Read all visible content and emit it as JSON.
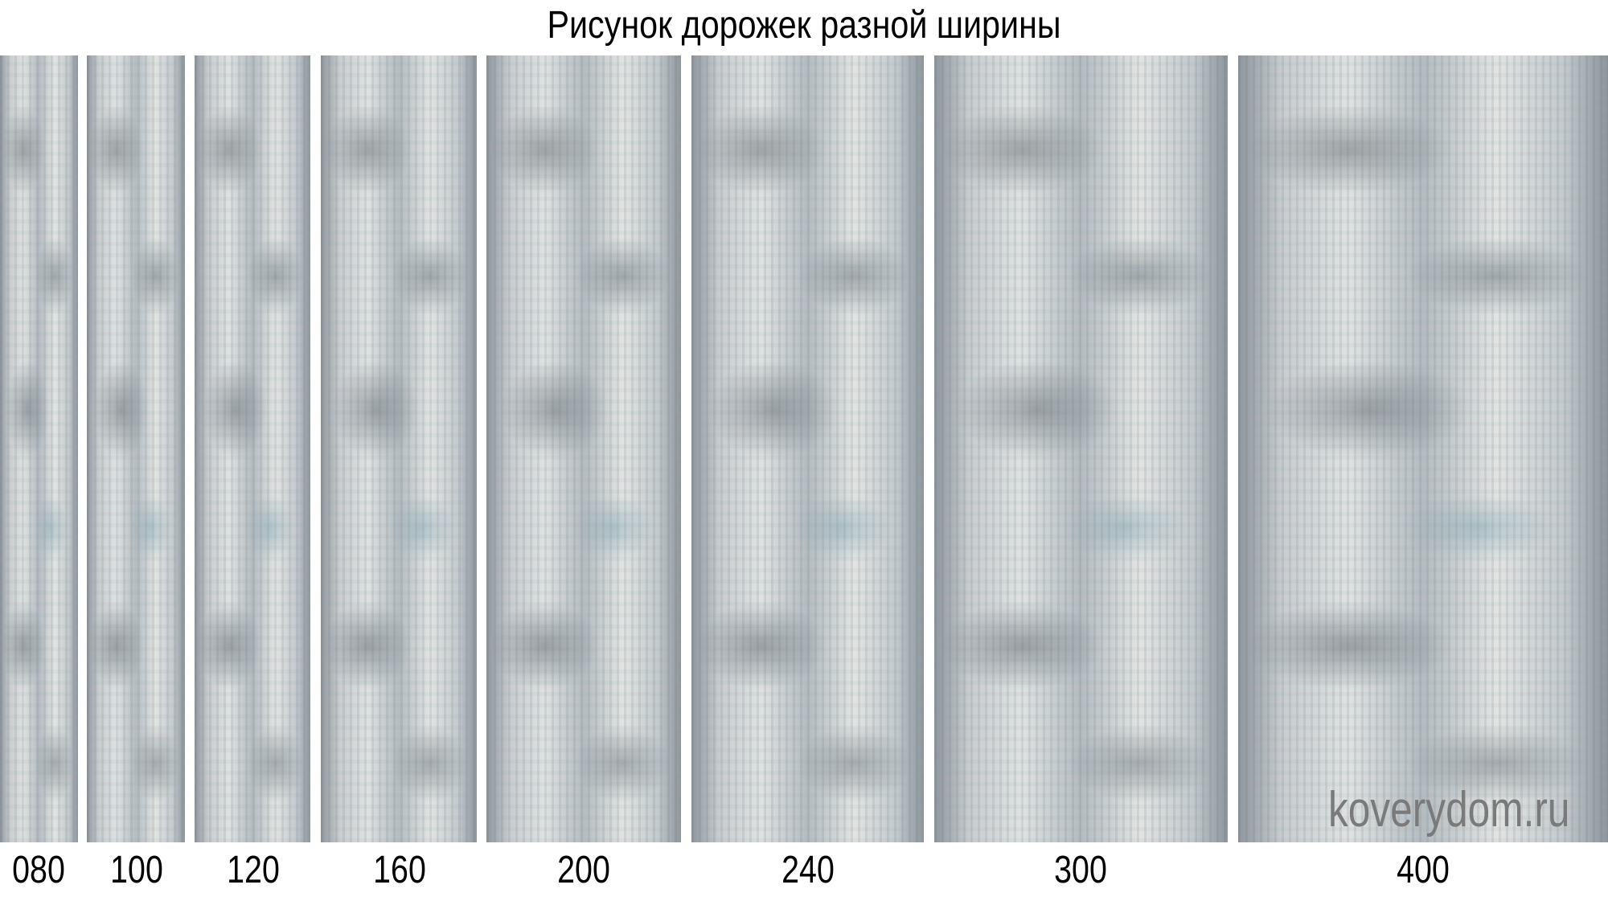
{
  "title": "Рисунок дорожек разной ширины",
  "runners": [
    {
      "label": "080"
    },
    {
      "label": "100"
    },
    {
      "label": "120"
    },
    {
      "label": "160"
    },
    {
      "label": "200"
    },
    {
      "label": "240"
    },
    {
      "label": "300"
    },
    {
      "label": "400"
    }
  ],
  "watermark": "koverydom.ru",
  "colors": {
    "carpet_gray": "#b5bcc0",
    "carpet_blue": "#8fb4c0",
    "carpet_light": "#e2e4e2"
  }
}
